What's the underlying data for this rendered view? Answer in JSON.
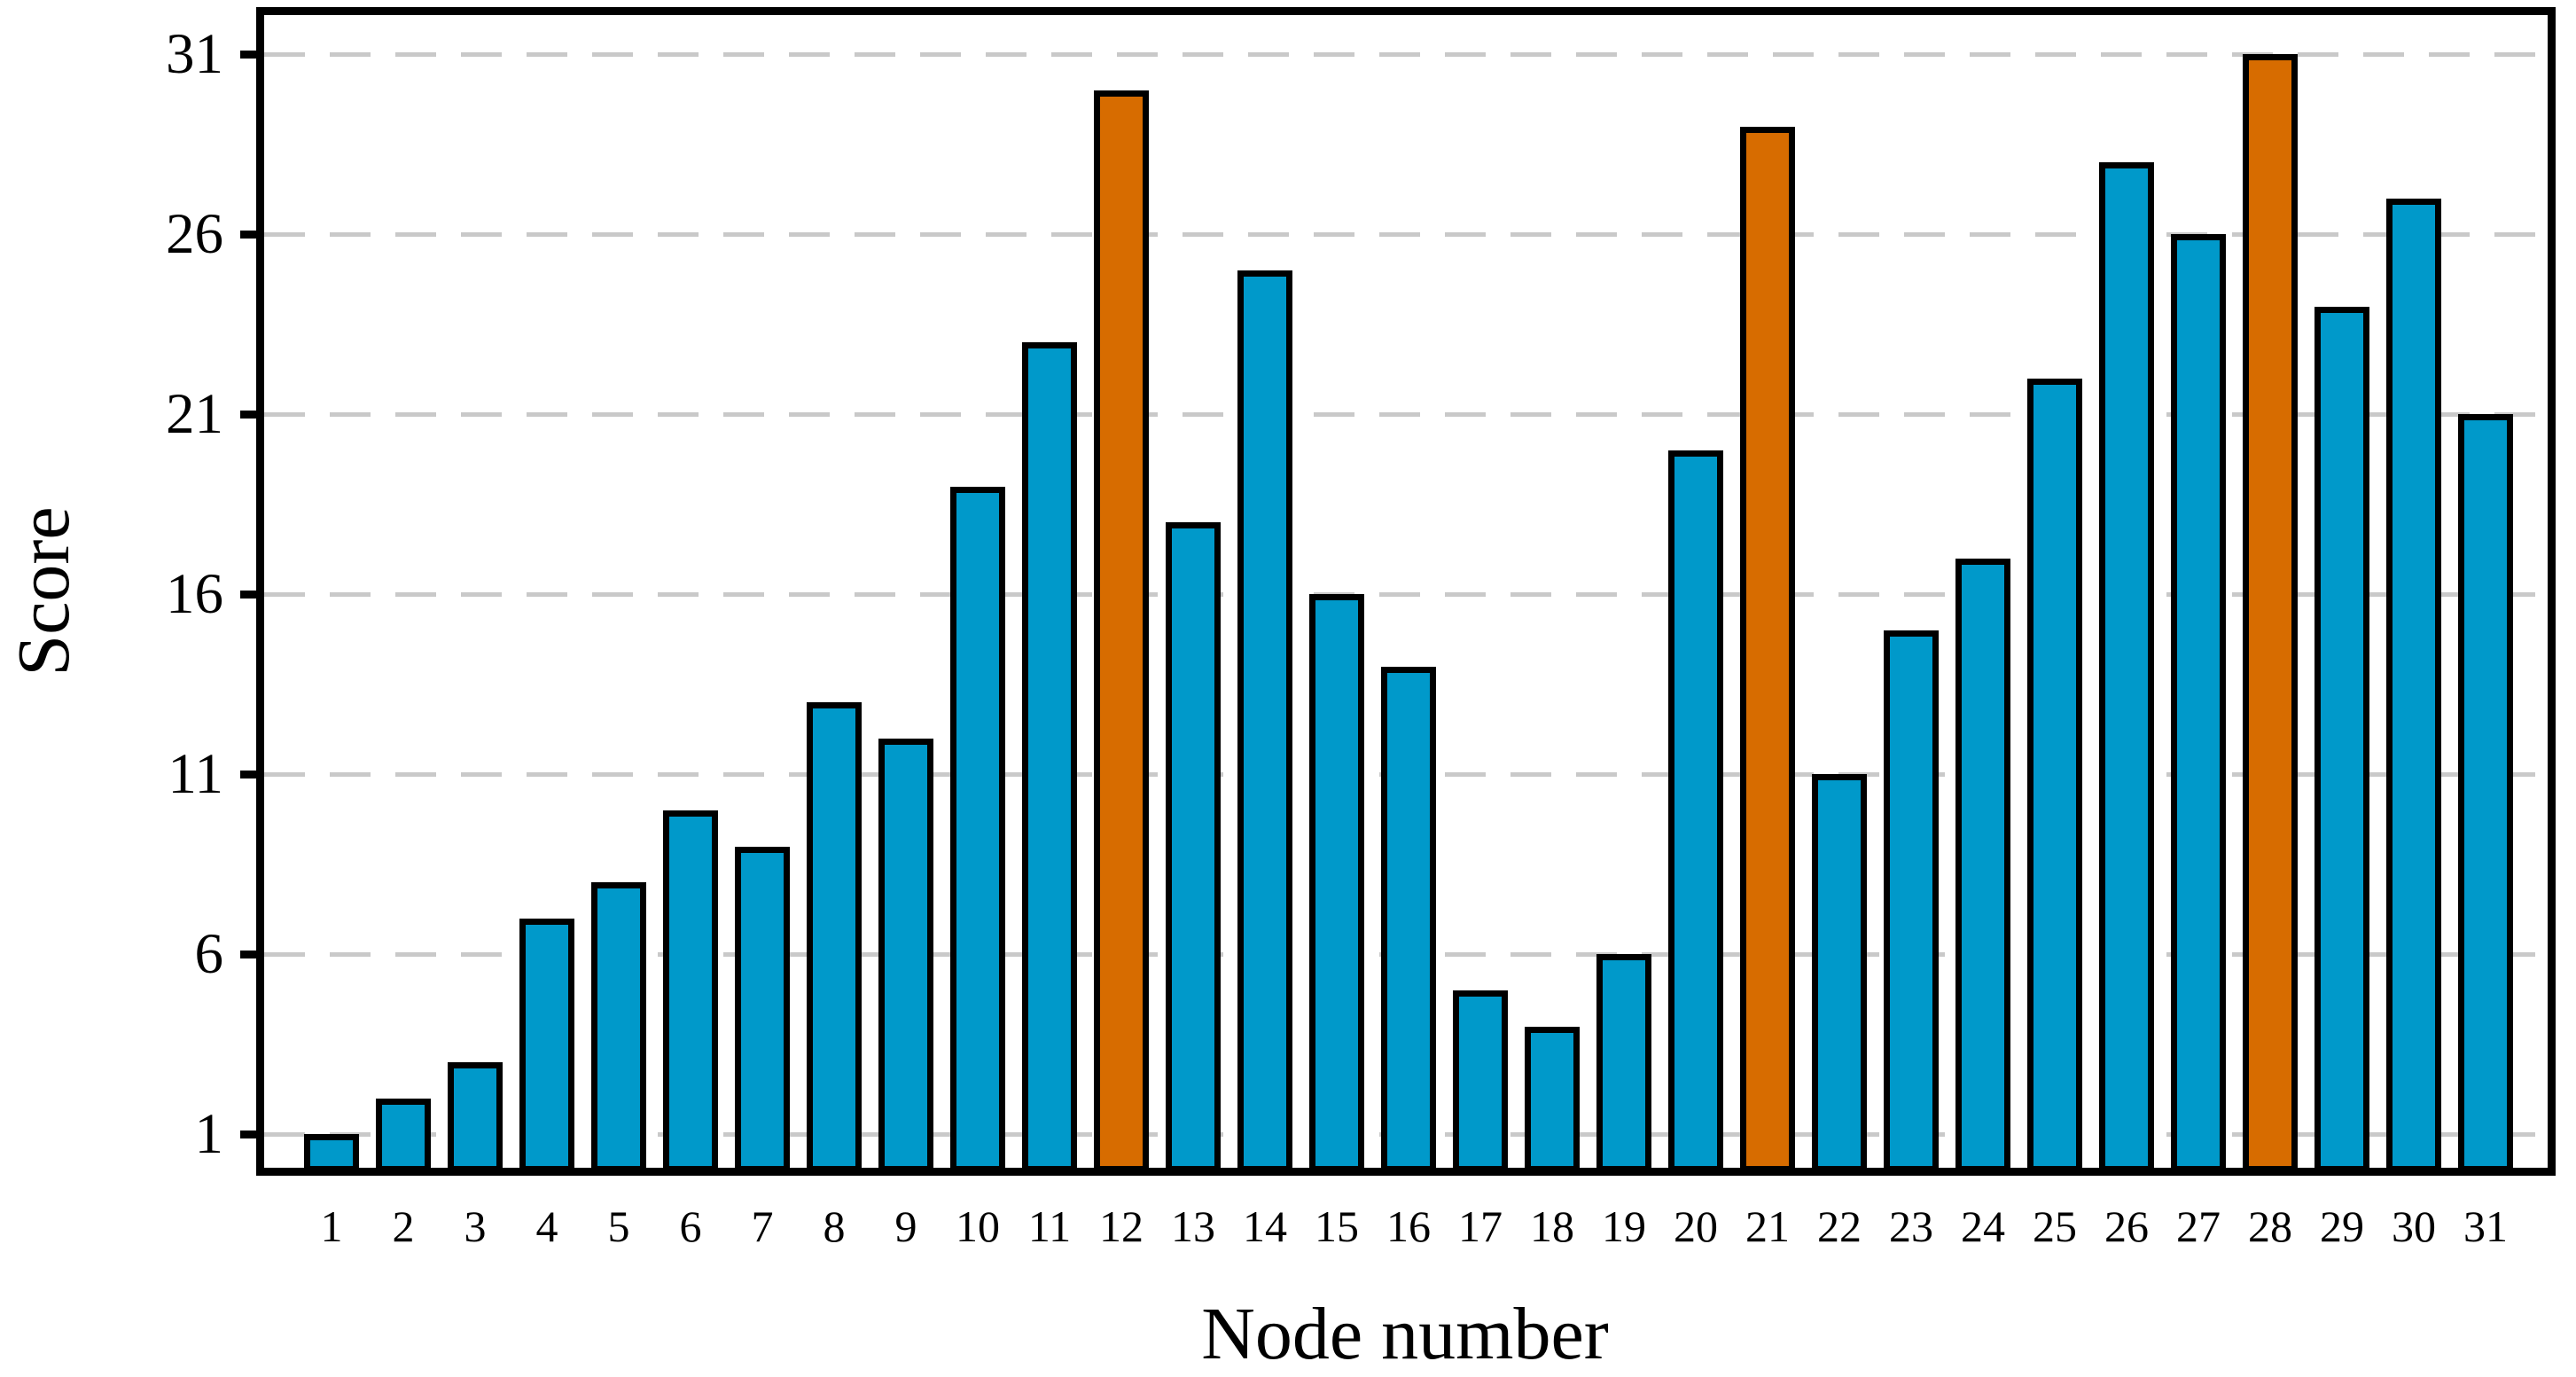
{
  "chart_data": {
    "type": "bar",
    "title": "",
    "xlabel": "Node number",
    "ylabel": "Score",
    "categories": [
      "1",
      "2",
      "3",
      "4",
      "5",
      "6",
      "7",
      "8",
      "9",
      "10",
      "11",
      "12",
      "13",
      "14",
      "15",
      "16",
      "17",
      "18",
      "19",
      "20",
      "21",
      "22",
      "23",
      "24",
      "25",
      "26",
      "27",
      "28",
      "29",
      "30",
      "31"
    ],
    "values": [
      1,
      2,
      3,
      7,
      8,
      10,
      9,
      13,
      12,
      19,
      23,
      30,
      18,
      25,
      16,
      14,
      5,
      4,
      6,
      20,
      29,
      11,
      15,
      17,
      22,
      28,
      26,
      31,
      24,
      27,
      21
    ],
    "highlighted_nodes": [
      "12",
      "21",
      "28"
    ],
    "yticks": [
      1,
      6,
      11,
      16,
      21,
      26,
      31
    ],
    "ylim": [
      0,
      32.2
    ],
    "grid": "horizontal-dashed",
    "legend": "none",
    "bar_color": "#0099CA",
    "highlight_color": "#D76C00",
    "bar_edge_color": "#000000",
    "grid_color": "#C9C9C9",
    "frame_color": "#000000"
  }
}
